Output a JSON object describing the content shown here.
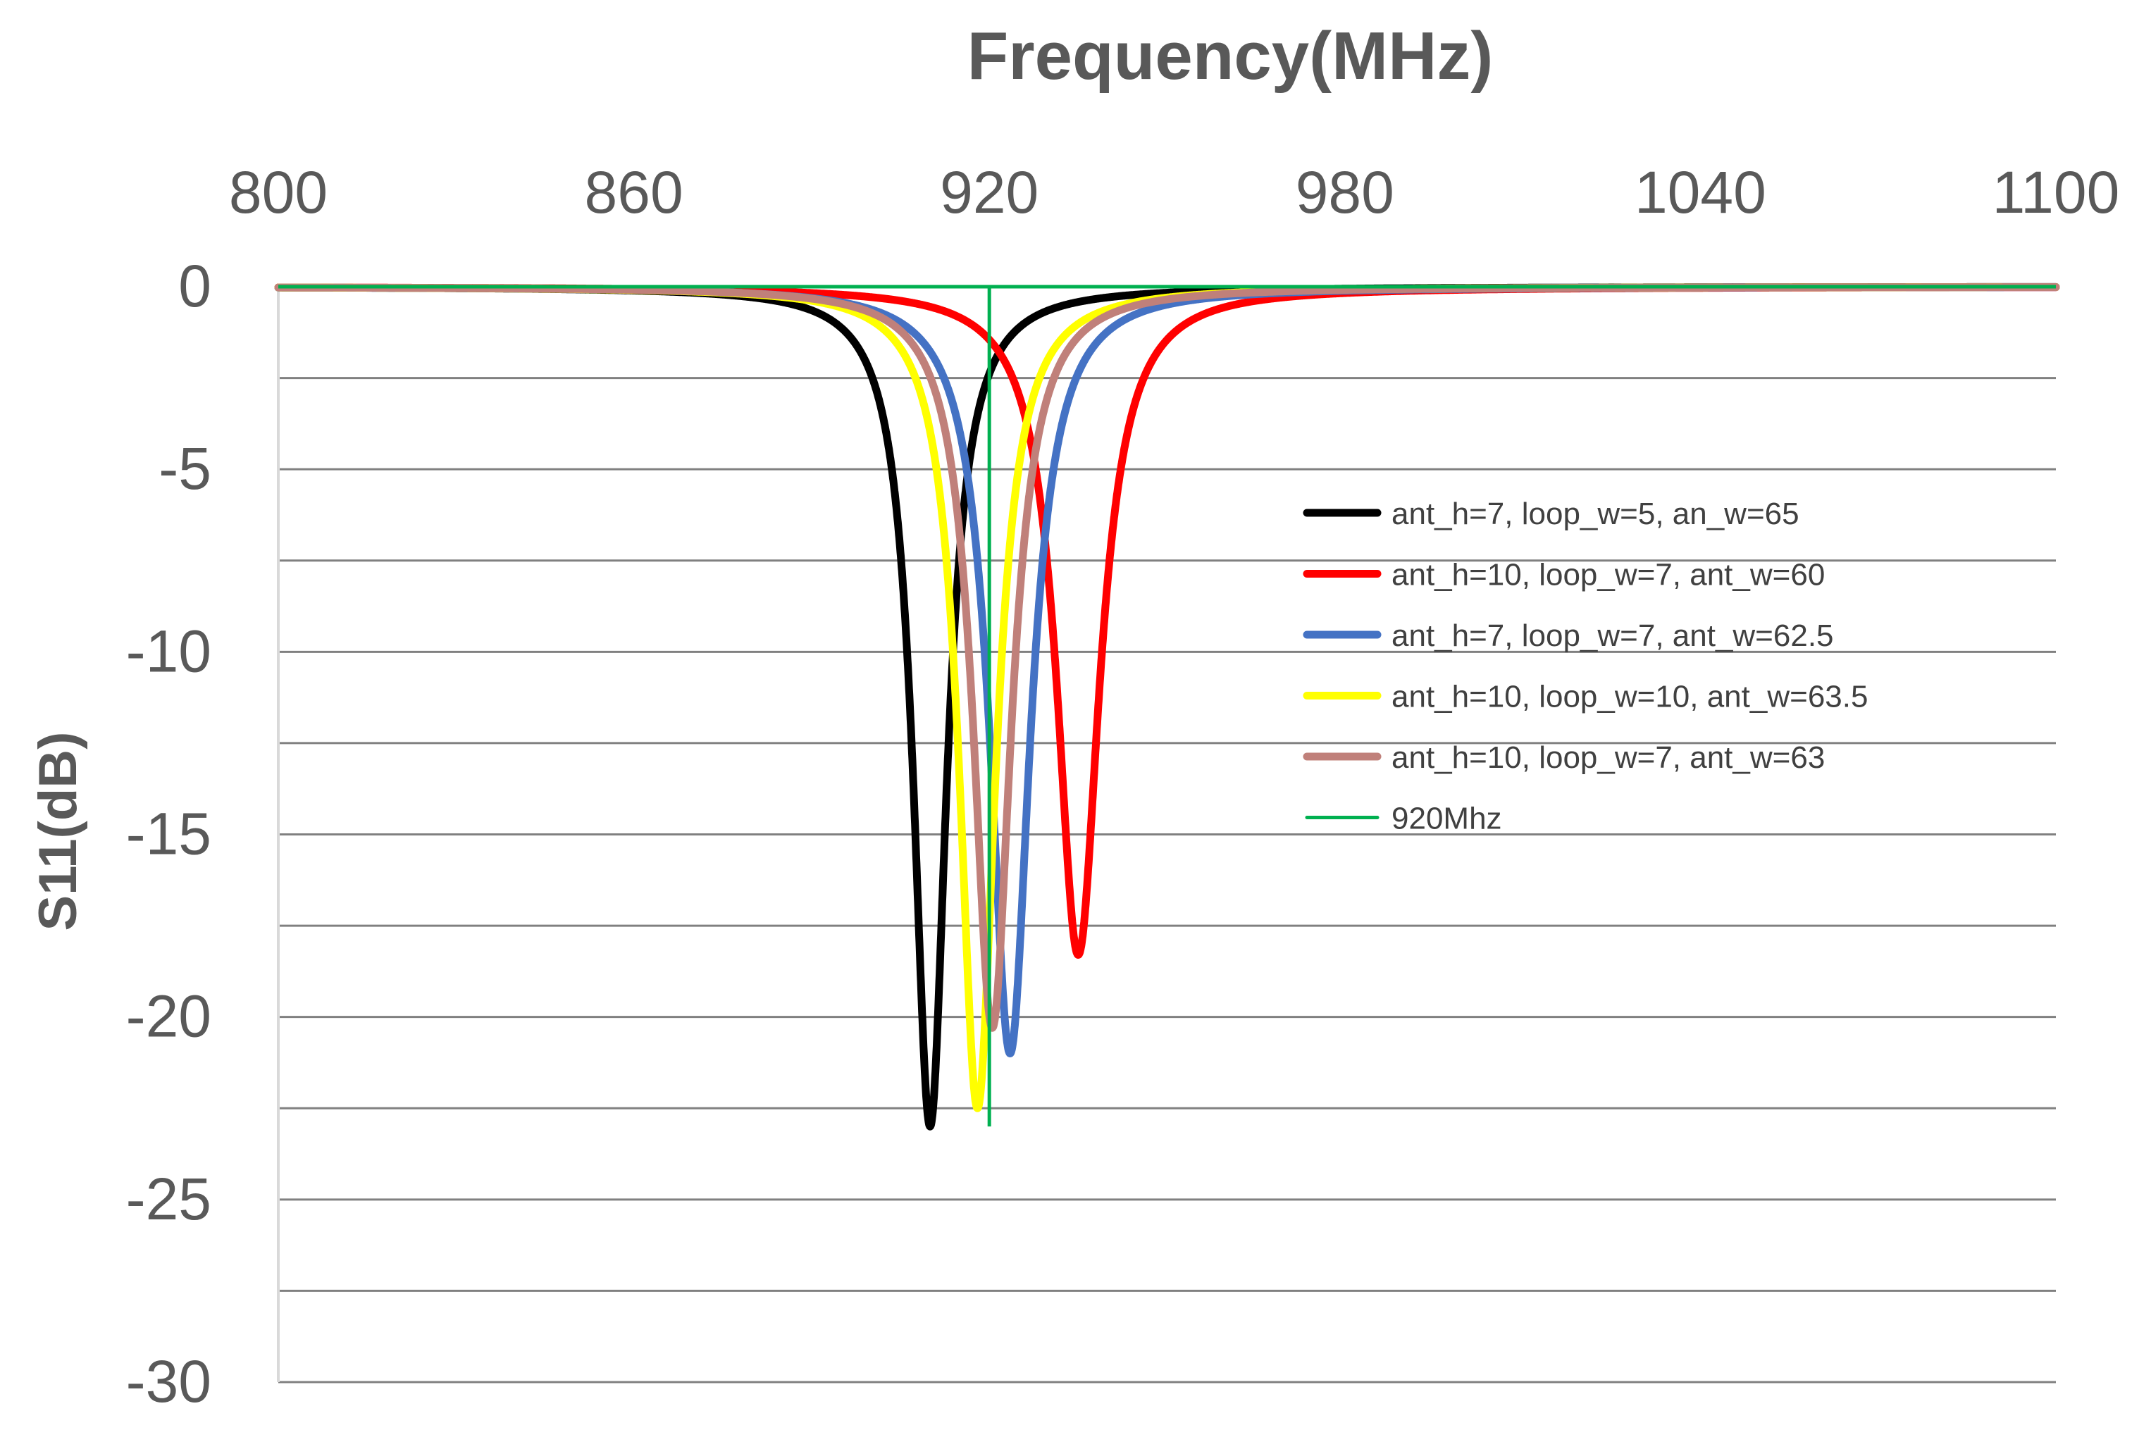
{
  "chart_data": {
    "type": "line",
    "title": "",
    "xlabel": "Frequency(MHz)",
    "ylabel": "S11(dB)",
    "xlim": [
      800,
      1100
    ],
    "ylim": [
      -30,
      0
    ],
    "x_ticks": [
      800,
      860,
      920,
      980,
      1040,
      1100
    ],
    "x_tick_labels": [
      "800",
      "860",
      "920",
      "980",
      "1040",
      "1100"
    ],
    "y_ticks": [
      0,
      -5,
      -10,
      -15,
      -20,
      -25,
      -30
    ],
    "y_tick_labels": [
      "0",
      "-5",
      "-10",
      "-15",
      "-20",
      "-25",
      "-30"
    ],
    "x_axis_position": "top",
    "grid": true,
    "legend_position": "right-middle",
    "series": [
      {
        "name": "ant_h=7, loop_w=5, an_w=65",
        "color": "#000000",
        "center": 910,
        "min_db": -23,
        "halfwidth": 3.4
      },
      {
        "name": "ant_h=10, loop_w=7, ant_w=60",
        "color": "#ff0000",
        "center": 935,
        "min_db": -18.3,
        "halfwidth": 4.4
      },
      {
        "name": "ant_h=7, loop_w=7, ant_w=62.5",
        "color": "#4472c4",
        "center": 923.5,
        "min_db": -21,
        "halfwidth": 4.1
      },
      {
        "name": "ant_h=10, loop_w=10, ant_w=63.5",
        "color": "#ffff00",
        "center": 918,
        "min_db": -22.5,
        "halfwidth": 3.7
      },
      {
        "name": "ant_h=10, loop_w=7, ant_w=63",
        "color": "#c0807a",
        "center": 920.5,
        "min_db": -20.3,
        "halfwidth": 3.9
      }
    ],
    "markers": [
      {
        "name": "920Mhz",
        "color": "#00b050",
        "x": 920,
        "y_range": [
          0,
          -23
        ]
      }
    ]
  }
}
